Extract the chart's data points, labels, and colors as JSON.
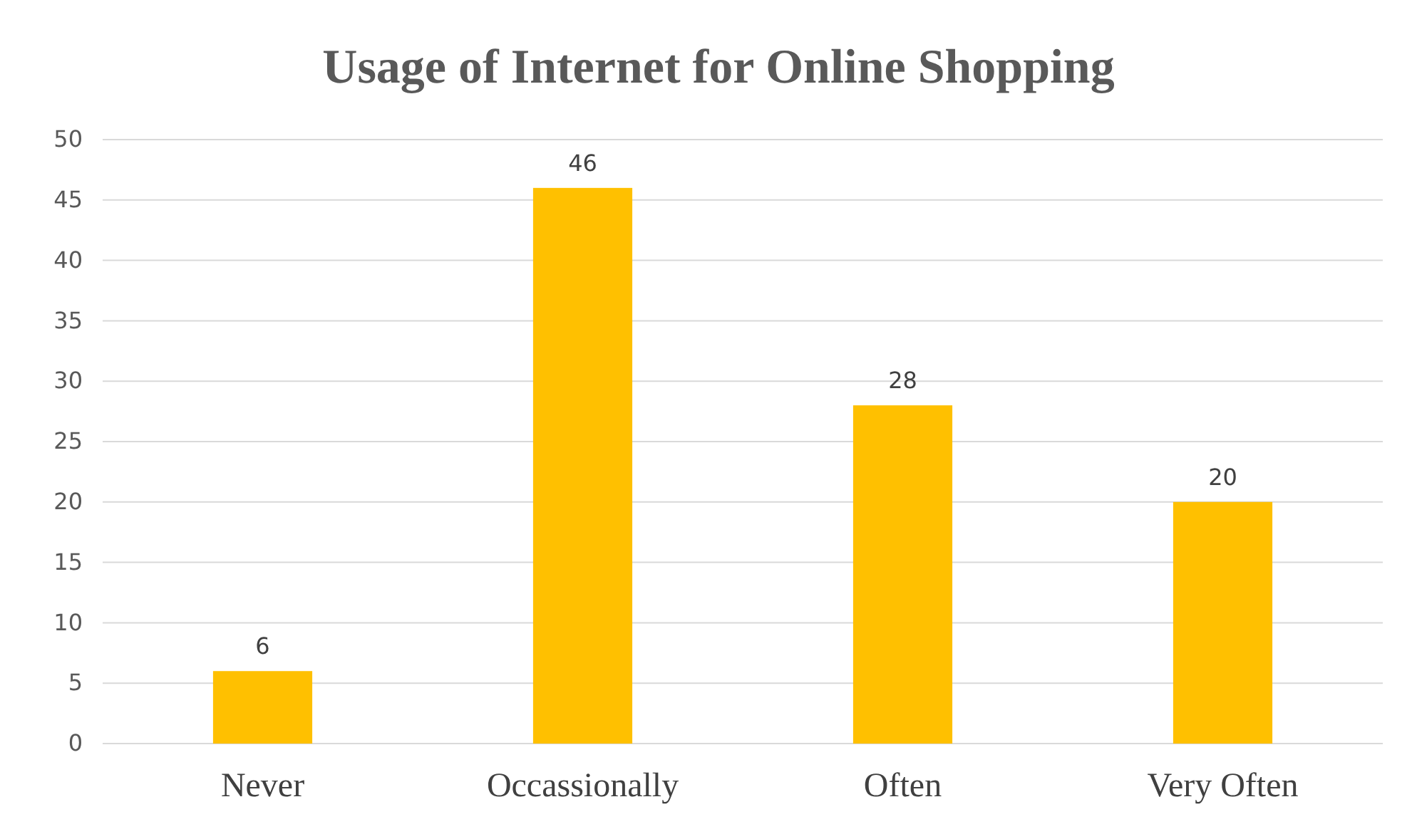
{
  "chart_data": {
    "type": "bar",
    "title": "Usage of Internet for Online Shopping",
    "categories": [
      "Never",
      "Occassionally",
      "Often",
      "Very Often"
    ],
    "values": [
      6,
      46,
      28,
      20
    ],
    "color": "#ffc000",
    "ylim": [
      0,
      50
    ],
    "yticks": [
      0,
      5,
      10,
      15,
      20,
      25,
      30,
      35,
      40,
      45,
      50
    ],
    "grid": "y",
    "data_labels": true
  }
}
